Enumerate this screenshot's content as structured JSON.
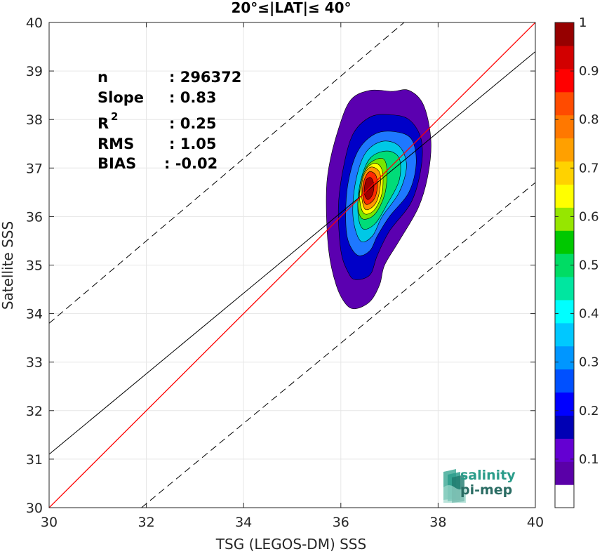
{
  "chart_data": {
    "type": "scatter",
    "subtype": "density-contour",
    "title": "20°≤|LAT|≤ 40°",
    "xlabel": "TSG (LEGOS-DM) SSS",
    "ylabel": "Satellite SSS",
    "xlim": [
      30,
      40
    ],
    "ylim": [
      30,
      40
    ],
    "xticks": [
      "30",
      "32",
      "34",
      "36",
      "38",
      "40"
    ],
    "yticks": [
      "30",
      "31",
      "32",
      "33",
      "34",
      "35",
      "36",
      "37",
      "38",
      "39",
      "40"
    ],
    "grid": true,
    "stats": [
      {
        "label": "n",
        "value": ": 296372"
      },
      {
        "label": "Slope",
        "value": ": 0.83"
      },
      {
        "label": "R",
        "sup": "2",
        "value": ": 0.25"
      },
      {
        "label": "RMS",
        "value": ": 1.05"
      },
      {
        "label": "BIAS",
        "value": ": -0.02"
      }
    ],
    "lines": {
      "one_to_one": {
        "color": "#ff0000",
        "points": [
          [
            30,
            30
          ],
          [
            40,
            40
          ]
        ]
      },
      "regression": {
        "color": "#000000",
        "style": "solid",
        "points": [
          [
            30,
            31.1
          ],
          [
            40,
            39.4
          ]
        ]
      },
      "upper_bound": {
        "color": "#000000",
        "style": "dashed",
        "points": [
          [
            30,
            33.8
          ],
          [
            37.3,
            40
          ]
        ]
      },
      "lower_bound": {
        "color": "#000000",
        "style": "dashed",
        "points": [
          [
            31.9,
            30
          ],
          [
            40,
            36.7
          ]
        ]
      }
    },
    "contours": [
      {
        "level": 0.05,
        "color": "#5b00b0",
        "points": [
          [
            36.3,
            34.1
          ],
          [
            36.6,
            34.25
          ],
          [
            36.8,
            34.6
          ],
          [
            36.9,
            35.0
          ],
          [
            37.2,
            35.5
          ],
          [
            37.6,
            36.2
          ],
          [
            37.8,
            36.9
          ],
          [
            37.85,
            37.6
          ],
          [
            37.7,
            38.3
          ],
          [
            37.4,
            38.6
          ],
          [
            37.05,
            38.58
          ],
          [
            36.6,
            38.6
          ],
          [
            36.2,
            38.4
          ],
          [
            35.95,
            37.8
          ],
          [
            35.75,
            37.0
          ],
          [
            35.7,
            36.3
          ],
          [
            35.75,
            35.3
          ],
          [
            35.9,
            34.6
          ],
          [
            36.1,
            34.2
          ]
        ]
      },
      {
        "level": 0.15,
        "color": "#0000c8",
        "points": [
          [
            36.3,
            34.7
          ],
          [
            36.6,
            34.8
          ],
          [
            36.75,
            35.2
          ],
          [
            37.0,
            35.7
          ],
          [
            37.45,
            36.3
          ],
          [
            37.65,
            37.0
          ],
          [
            37.65,
            37.6
          ],
          [
            37.4,
            38.0
          ],
          [
            37.0,
            38.1
          ],
          [
            36.6,
            38.05
          ],
          [
            36.25,
            37.7
          ],
          [
            36.05,
            37.0
          ],
          [
            35.95,
            36.2
          ],
          [
            36.0,
            35.3
          ],
          [
            36.15,
            34.85
          ]
        ]
      },
      {
        "level": 0.25,
        "color": "#1e78ff",
        "points": [
          [
            36.35,
            35.2
          ],
          [
            36.6,
            35.3
          ],
          [
            36.75,
            35.6
          ],
          [
            37.0,
            36.0
          ],
          [
            37.4,
            36.5
          ],
          [
            37.55,
            37.1
          ],
          [
            37.45,
            37.6
          ],
          [
            37.1,
            37.75
          ],
          [
            36.7,
            37.7
          ],
          [
            36.35,
            37.35
          ],
          [
            36.15,
            36.7
          ],
          [
            36.1,
            36.0
          ],
          [
            36.15,
            35.5
          ]
        ]
      },
      {
        "level": 0.35,
        "color": "#00c8e6",
        "points": [
          [
            36.4,
            35.5
          ],
          [
            36.65,
            35.6
          ],
          [
            36.85,
            36.0
          ],
          [
            37.2,
            36.5
          ],
          [
            37.35,
            37.05
          ],
          [
            37.2,
            37.45
          ],
          [
            36.85,
            37.55
          ],
          [
            36.5,
            37.3
          ],
          [
            36.3,
            36.7
          ],
          [
            36.25,
            36.0
          ]
        ]
      },
      {
        "level": 0.45,
        "color": "#00dc78",
        "points": [
          [
            36.45,
            35.75
          ],
          [
            36.7,
            35.85
          ],
          [
            36.95,
            36.25
          ],
          [
            37.2,
            36.75
          ],
          [
            37.2,
            37.2
          ],
          [
            36.95,
            37.35
          ],
          [
            36.6,
            37.2
          ],
          [
            36.4,
            36.7
          ],
          [
            36.35,
            36.1
          ]
        ]
      },
      {
        "level": 0.55,
        "color": "#78e600",
        "points": [
          [
            36.45,
            35.95
          ],
          [
            36.7,
            36.05
          ],
          [
            36.9,
            36.45
          ],
          [
            36.95,
            36.95
          ],
          [
            36.85,
            37.2
          ],
          [
            36.55,
            37.05
          ],
          [
            36.4,
            36.6
          ],
          [
            36.35,
            36.2
          ]
        ]
      },
      {
        "level": 0.65,
        "color": "#ffff00",
        "points": [
          [
            36.5,
            36.05
          ],
          [
            36.7,
            36.15
          ],
          [
            36.85,
            36.5
          ],
          [
            36.85,
            36.95
          ],
          [
            36.7,
            37.1
          ],
          [
            36.5,
            36.95
          ],
          [
            36.4,
            36.6
          ],
          [
            36.4,
            36.25
          ]
        ]
      },
      {
        "level": 0.75,
        "color": "#ff9600",
        "points": [
          [
            36.5,
            36.15
          ],
          [
            36.7,
            36.25
          ],
          [
            36.8,
            36.55
          ],
          [
            36.8,
            36.9
          ],
          [
            36.62,
            37.02
          ],
          [
            36.47,
            36.85
          ],
          [
            36.42,
            36.5
          ]
        ]
      },
      {
        "level": 0.85,
        "color": "#ff2800",
        "points": [
          [
            36.52,
            36.25
          ],
          [
            36.68,
            36.35
          ],
          [
            36.75,
            36.6
          ],
          [
            36.72,
            36.85
          ],
          [
            36.58,
            36.92
          ],
          [
            36.47,
            36.72
          ],
          [
            36.45,
            36.45
          ]
        ]
      },
      {
        "level": 0.95,
        "color": "#a00000",
        "points": [
          [
            36.55,
            36.35
          ],
          [
            36.65,
            36.45
          ],
          [
            36.68,
            36.65
          ],
          [
            36.62,
            36.8
          ],
          [
            36.52,
            36.75
          ],
          [
            36.48,
            36.5
          ]
        ]
      }
    ],
    "colorbar": {
      "ticks": [
        "0.1",
        "0.2",
        "0.3",
        "0.4",
        "0.5",
        "0.6",
        "0.7",
        "0.8",
        "0.9",
        "1"
      ],
      "range": [
        0,
        1
      ],
      "bands": [
        "#ffffff",
        "#5a00a8",
        "#6400d2",
        "#0000b4",
        "#0000ff",
        "#0050ff",
        "#0096ff",
        "#00c8ff",
        "#00ffff",
        "#00e6a0",
        "#00dc64",
        "#00c800",
        "#96e600",
        "#ffff00",
        "#ffd200",
        "#ffa000",
        "#ff7800",
        "#ff4b00",
        "#ff0000",
        "#d20000",
        "#960000"
      ]
    }
  },
  "logo": {
    "line1": "salinity",
    "line2": "pi-mep"
  }
}
